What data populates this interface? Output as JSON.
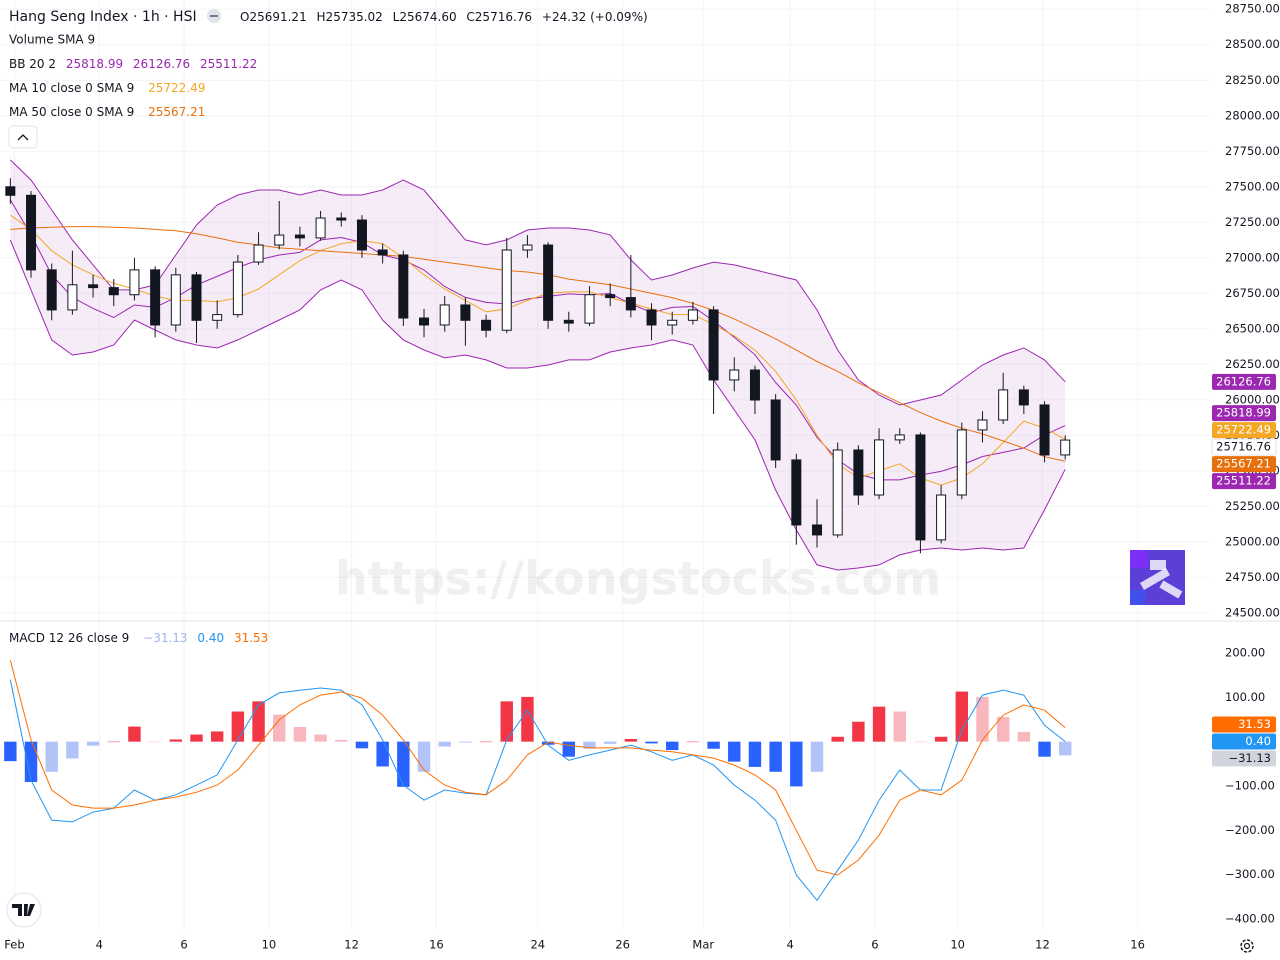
{
  "header": {
    "title": "Hang Seng Index · 1h · HSI",
    "ohlc": [
      "O25691.21",
      "H25735.02",
      "L25674.60",
      "C25716.76",
      "+24.32 (+0.09%)"
    ]
  },
  "indicators": {
    "volume": "Volume SMA 9",
    "bb": "BB 20 2",
    "ma10": "MA 10 close 0 SMA 9",
    "ma50": "MA 50 close 0 SMA 9",
    "macd": "MACD 12 26 close 9"
  },
  "watermark": "https://kongstocks.com",
  "chart_data": [
    {
      "type": "candlestick",
      "xlim": [
        -0.5,
        58
      ],
      "xticks": [
        {
          "value": 0.2,
          "label": "Feb"
        },
        {
          "value": 4.3,
          "label": "4"
        },
        {
          "value": 8.4,
          "label": "6"
        },
        {
          "value": 12.5,
          "label": "10"
        },
        {
          "value": 16.5,
          "label": "12"
        },
        {
          "value": 20.6,
          "label": "16"
        },
        {
          "value": 25.5,
          "label": "24"
        },
        {
          "value": 29.6,
          "label": "26"
        },
        {
          "value": 33.5,
          "label": "Mar"
        },
        {
          "value": 37.7,
          "label": "4"
        },
        {
          "value": 41.8,
          "label": "6"
        },
        {
          "value": 45.8,
          "label": "10"
        },
        {
          "value": 49.9,
          "label": "12"
        },
        {
          "value": 54.5,
          "label": "16"
        }
      ],
      "ylim": [
        24450,
        28815
      ],
      "yticks": [
        {
          "value": 24500,
          "label": "24500.00"
        },
        {
          "value": 24750,
          "label": "24750.00"
        },
        {
          "value": 25000,
          "label": "25000.00"
        },
        {
          "value": 25250,
          "label": "25250.00"
        },
        {
          "value": 25500,
          "label": "25500.00"
        },
        {
          "value": 25750,
          "label": "25750.00"
        },
        {
          "value": 26000,
          "label": "26000.00"
        },
        {
          "value": 26250,
          "label": "26250.00"
        },
        {
          "value": 26500,
          "label": "26500.00"
        },
        {
          "value": 26750,
          "label": "26750.00"
        },
        {
          "value": 27000,
          "label": "27000.00"
        },
        {
          "value": 27250,
          "label": "27250.00"
        },
        {
          "value": 27500,
          "label": "27500.00"
        },
        {
          "value": 27750,
          "label": "27750.00"
        },
        {
          "value": 28000,
          "label": "28000.00"
        },
        {
          "value": 28250,
          "label": "28250.00"
        },
        {
          "value": 28500,
          "label": "28500.00"
        },
        {
          "value": 28750,
          "label": "28750.00"
        }
      ],
      "grid": true,
      "up_color": "#ffffff",
      "down_color": "#131722",
      "open": [
        27500,
        27440,
        26915,
        26633,
        26810,
        26790,
        26740,
        26915,
        26527,
        26880,
        26560,
        26600,
        26970,
        27090,
        27160,
        27140,
        27280,
        27266,
        27055,
        27020,
        26576,
        26527,
        26668,
        26560,
        26490,
        27055,
        27090,
        26560,
        26540,
        26740,
        26720,
        26633,
        26527,
        26560,
        26633,
        26140,
        26210,
        25999,
        25577,
        25119,
        25049,
        25647,
        25330,
        25718,
        25753,
        25014,
        25330,
        25788,
        25858,
        26070,
        25964,
        25612
      ],
      "high": [
        27560,
        27470,
        26960,
        27050,
        26880,
        26850,
        27000,
        26940,
        26930,
        26900,
        26700,
        27020,
        27180,
        27400,
        27220,
        27330,
        27320,
        27300,
        27100,
        27050,
        26640,
        26730,
        26720,
        26600,
        27140,
        27160,
        27110,
        26620,
        26800,
        26820,
        27020,
        26680,
        26620,
        26690,
        26660,
        26300,
        26240,
        26040,
        25620,
        25300,
        25700,
        25680,
        25800,
        25800,
        25770,
        25400,
        25840,
        25920,
        26190,
        26100,
        25990,
        25750
      ],
      "low": [
        27380,
        26860,
        26560,
        26600,
        26720,
        26660,
        26700,
        26440,
        26480,
        26400,
        26500,
        26580,
        26950,
        27060,
        27080,
        27120,
        27220,
        27000,
        26960,
        26520,
        26440,
        26480,
        26380,
        26440,
        26470,
        27000,
        26500,
        26480,
        26520,
        26660,
        26580,
        26420,
        26460,
        26530,
        25900,
        26060,
        25900,
        25520,
        24980,
        24960,
        25030,
        25260,
        25300,
        25690,
        24920,
        24990,
        25300,
        25700,
        25830,
        25900,
        25560,
        25580
      ],
      "close": [
        27440,
        26915,
        26633,
        26810,
        26790,
        26740,
        26915,
        26527,
        26880,
        26560,
        26600,
        26970,
        27090,
        27160,
        27140,
        27280,
        27266,
        27055,
        27020,
        26576,
        26527,
        26668,
        26560,
        26490,
        27055,
        27090,
        26560,
        26540,
        26740,
        26720,
        26633,
        26527,
        26560,
        26633,
        26140,
        26210,
        25999,
        25577,
        25119,
        25049,
        25647,
        25330,
        25718,
        25753,
        25014,
        25330,
        25788,
        25858,
        26070,
        25964,
        25612,
        25716.76
      ],
      "bands": {
        "color": "#9c27b0",
        "fill": "rgba(156,39,176,0.09)",
        "basis": [
          27408,
          27161,
          26880,
          26721,
          26644,
          26580,
          26668,
          26651,
          26721,
          26809,
          26869,
          26932,
          26985,
          27020,
          27038,
          27126,
          27143,
          27108,
          27020,
          26985,
          26914,
          26798,
          26721,
          26686,
          26675,
          26710,
          26728,
          26746,
          26739,
          26749,
          26675,
          26615,
          26651,
          26657,
          26555,
          26440,
          26317,
          26122,
          25964,
          25736,
          25577,
          25478,
          25436,
          25436,
          25471,
          25496,
          25542,
          25601,
          25630,
          25661,
          25753,
          25818.99
        ],
        "upper": [
          27689,
          27548,
          27337,
          27126,
          26950,
          26774,
          26774,
          26809,
          27020,
          27231,
          27372,
          27442,
          27477,
          27477,
          27442,
          27477,
          27442,
          27442,
          27477,
          27548,
          27477,
          27301,
          27126,
          27091,
          27126,
          27196,
          27210,
          27210,
          27196,
          27161,
          26985,
          26844,
          26879,
          26928,
          26970,
          26950,
          26915,
          26879,
          26844,
          26633,
          26351,
          26140,
          26034,
          25964,
          25999,
          26034,
          26140,
          26245,
          26316,
          26365,
          26281,
          26126.76
        ],
        "lower": [
          27126,
          26774,
          26422,
          26316,
          26337,
          26386,
          26562,
          26492,
          26422,
          26386,
          26365,
          26422,
          26492,
          26562,
          26633,
          26774,
          26844,
          26774,
          26562,
          26422,
          26351,
          26295,
          26316,
          26281,
          26224,
          26224,
          26245,
          26281,
          26281,
          26337,
          26365,
          26386,
          26422,
          26386,
          26140,
          25929,
          25718,
          25365,
          25084,
          24838,
          24802,
          24816,
          24838,
          24908,
          24943,
          24957,
          24943,
          24957,
          24943,
          24957,
          25225,
          25511.22
        ]
      },
      "series": [
        {
          "color": "#f5a623",
          "values": [
            27300,
            27200,
            27050,
            26950,
            26880,
            26820,
            26780,
            26730,
            26700,
            26700,
            26690,
            26720,
            26780,
            26880,
            26980,
            27050,
            27100,
            27120,
            27100,
            27000,
            26880,
            26780,
            26700,
            26620,
            26640,
            26700,
            26750,
            26760,
            26760,
            26720,
            26680,
            26640,
            26600,
            26600,
            26530,
            26450,
            26350,
            26200,
            26000,
            25750,
            25550,
            25450,
            25500,
            25550,
            25450,
            25400,
            25450,
            25550,
            25700,
            25850,
            25800,
            25722.49
          ]
        },
        {
          "color": "#e8700c",
          "values": [
            27200,
            27210,
            27215,
            27220,
            27220,
            27215,
            27210,
            27200,
            27190,
            27170,
            27140,
            27110,
            27090,
            27070,
            27060,
            27050,
            27040,
            27030,
            27020,
            27010,
            26990,
            26970,
            26950,
            26930,
            26910,
            26900,
            26880,
            26850,
            26830,
            26810,
            26780,
            26750,
            26720,
            26680,
            26630,
            26570,
            26500,
            26430,
            26350,
            26270,
            26200,
            26120,
            26050,
            25980,
            25910,
            25850,
            25800,
            25760,
            25710,
            25660,
            25600,
            25567.21
          ]
        }
      ]
    },
    {
      "type": "macd",
      "ylim": [
        -425,
        270
      ],
      "yticks": [
        {
          "value": 200,
          "label": "200.00"
        },
        {
          "value": 100,
          "label": "100.00"
        },
        {
          "value": -100,
          "label": "−100.00"
        },
        {
          "value": -200,
          "label": "−200.00"
        },
        {
          "value": -300,
          "label": "−300.00"
        },
        {
          "value": -400,
          "label": "−400.00"
        }
      ],
      "histogram": {
        "colors": {
          "rise_up": "#f23645",
          "fall_up": "#f8b7bd",
          "fall_down": "#2962ff",
          "rise_down": "#b2c3f7"
        },
        "values": [
          -44,
          -91,
          -68,
          -38,
          -9,
          0,
          34,
          0,
          5,
          16,
          23,
          68,
          91,
          61,
          33,
          16,
          4,
          -15,
          -56,
          -102,
          -68,
          -11,
          -2,
          0,
          91,
          101,
          -7,
          -34,
          -16,
          -5,
          6,
          -4,
          -19,
          0,
          -16,
          -45,
          -57,
          -68,
          -101,
          -68,
          11,
          45,
          79,
          68,
          0,
          11,
          113,
          101,
          56,
          22,
          -34,
          -31.13
        ],
        "last_label": "−31.13"
      },
      "series": [
        {
          "color": "#2196f3",
          "last_label": "0.40",
          "values": [
            140,
            -87,
            -177,
            -181,
            -159,
            -150,
            -109,
            -132,
            -120,
            -98,
            -75,
            4,
            83,
            110,
            116,
            121,
            116,
            83,
            4,
            -98,
            -132,
            -109,
            -116,
            -120,
            4,
            71,
            -8,
            -42,
            -30,
            -19,
            -8,
            -23,
            -42,
            -30,
            -53,
            -98,
            -132,
            -177,
            -301,
            -358,
            -290,
            -222,
            -132,
            -64,
            -109,
            -109,
            26,
            105,
            116,
            105,
            37,
            0.4
          ]
        },
        {
          "color": "#ff6d00",
          "values": [
            184,
            4,
            -109,
            -143,
            -150,
            -150,
            -143,
            -132,
            -125,
            -114,
            -98,
            -64,
            -8,
            49,
            83,
            105,
            112,
            98,
            60,
            4,
            -64,
            -98,
            -114,
            -120,
            -87,
            -30,
            -1,
            -8,
            -14,
            -14,
            -14,
            -19,
            -23,
            -30,
            -37,
            -53,
            -75,
            -109,
            -200,
            -290,
            -301,
            -267,
            -211,
            -132,
            -109,
            -120,
            -87,
            4,
            60,
            83,
            71,
            31.53
          ]
        }
      ]
    }
  ]
}
